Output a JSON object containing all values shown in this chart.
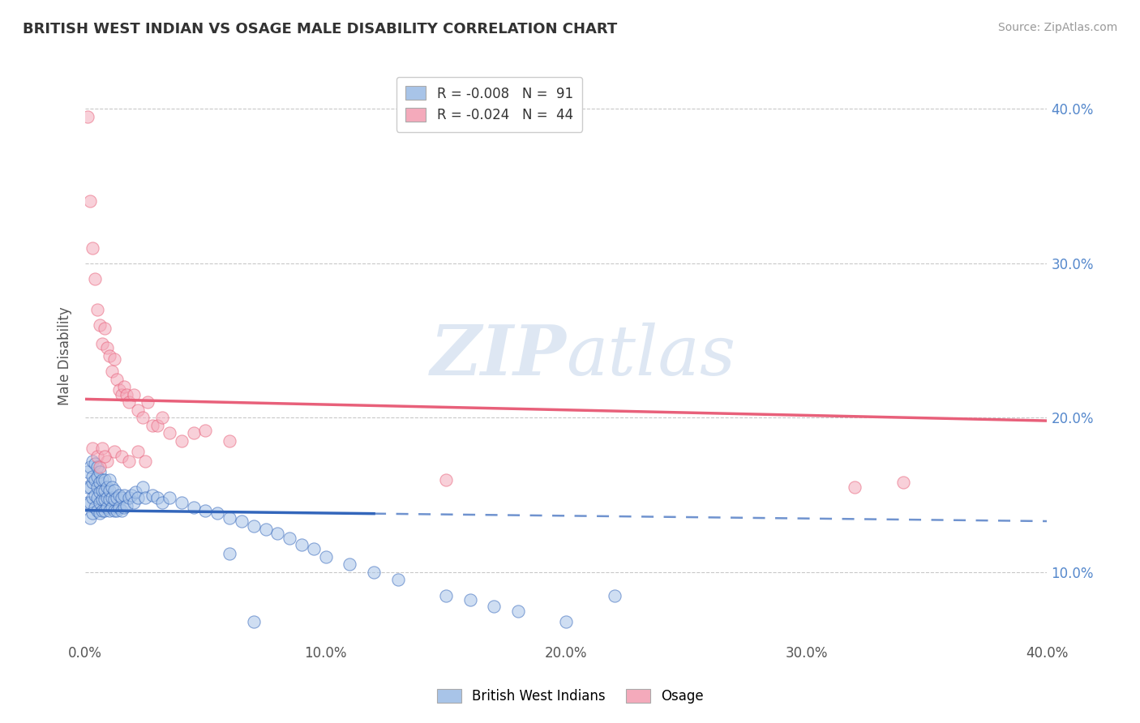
{
  "title": "BRITISH WEST INDIAN VS OSAGE MALE DISABILITY CORRELATION CHART",
  "source": "Source: ZipAtlas.com",
  "ylabel": "Male Disability",
  "xlim": [
    0.0,
    0.4
  ],
  "ylim": [
    0.055,
    0.425
  ],
  "xticks": [
    0.0,
    0.1,
    0.2,
    0.3,
    0.4
  ],
  "yticks": [
    0.1,
    0.2,
    0.3,
    0.4
  ],
  "xticklabels": [
    "0.0%",
    "10.0%",
    "20.0%",
    "30.0%",
    "40.0%"
  ],
  "yticklabels_right": [
    "10.0%",
    "20.0%",
    "30.0%",
    "40.0%"
  ],
  "blue_color": "#A8C4E8",
  "pink_color": "#F4AABB",
  "blue_line_color": "#3366BB",
  "pink_line_color": "#E8607A",
  "watermark_color": "#C8D8EC",
  "series1_label": "British West Indians",
  "series2_label": "Osage",
  "bwi_x": [
    0.001,
    0.001,
    0.001,
    0.002,
    0.002,
    0.002,
    0.002,
    0.003,
    0.003,
    0.003,
    0.003,
    0.003,
    0.004,
    0.004,
    0.004,
    0.004,
    0.005,
    0.005,
    0.005,
    0.005,
    0.005,
    0.006,
    0.006,
    0.006,
    0.006,
    0.006,
    0.007,
    0.007,
    0.007,
    0.007,
    0.008,
    0.008,
    0.008,
    0.008,
    0.009,
    0.009,
    0.009,
    0.01,
    0.01,
    0.01,
    0.01,
    0.011,
    0.011,
    0.011,
    0.012,
    0.012,
    0.012,
    0.013,
    0.013,
    0.014,
    0.014,
    0.015,
    0.015,
    0.016,
    0.016,
    0.017,
    0.018,
    0.019,
    0.02,
    0.021,
    0.022,
    0.024,
    0.025,
    0.028,
    0.03,
    0.032,
    0.035,
    0.04,
    0.045,
    0.05,
    0.055,
    0.06,
    0.065,
    0.07,
    0.075,
    0.08,
    0.085,
    0.09,
    0.095,
    0.1,
    0.11,
    0.12,
    0.13,
    0.15,
    0.16,
    0.17,
    0.18,
    0.2,
    0.22,
    0.06,
    0.07
  ],
  "bwi_y": [
    0.145,
    0.155,
    0.165,
    0.135,
    0.145,
    0.155,
    0.168,
    0.138,
    0.148,
    0.158,
    0.162,
    0.172,
    0.142,
    0.15,
    0.16,
    0.17,
    0.14,
    0.148,
    0.155,
    0.162,
    0.168,
    0.138,
    0.145,
    0.152,
    0.158,
    0.165,
    0.14,
    0.147,
    0.153,
    0.16,
    0.14,
    0.147,
    0.153,
    0.16,
    0.142,
    0.148,
    0.155,
    0.14,
    0.147,
    0.153,
    0.16,
    0.142,
    0.148,
    0.155,
    0.14,
    0.147,
    0.153,
    0.14,
    0.148,
    0.142,
    0.15,
    0.14,
    0.148,
    0.142,
    0.15,
    0.143,
    0.148,
    0.15,
    0.145,
    0.152,
    0.148,
    0.155,
    0.148,
    0.15,
    0.148,
    0.145,
    0.148,
    0.145,
    0.142,
    0.14,
    0.138,
    0.135,
    0.133,
    0.13,
    0.128,
    0.125,
    0.122,
    0.118,
    0.115,
    0.11,
    0.105,
    0.1,
    0.095,
    0.085,
    0.082,
    0.078,
    0.075,
    0.068,
    0.085,
    0.112,
    0.068
  ],
  "osage_x": [
    0.001,
    0.002,
    0.003,
    0.004,
    0.005,
    0.006,
    0.007,
    0.008,
    0.009,
    0.01,
    0.011,
    0.012,
    0.013,
    0.014,
    0.015,
    0.016,
    0.017,
    0.018,
    0.02,
    0.022,
    0.024,
    0.026,
    0.028,
    0.03,
    0.032,
    0.035,
    0.04,
    0.045,
    0.05,
    0.06,
    0.003,
    0.005,
    0.007,
    0.009,
    0.012,
    0.015,
    0.018,
    0.022,
    0.025,
    0.32,
    0.34,
    0.006,
    0.008,
    0.15
  ],
  "osage_y": [
    0.395,
    0.34,
    0.31,
    0.29,
    0.27,
    0.26,
    0.248,
    0.258,
    0.245,
    0.24,
    0.23,
    0.238,
    0.225,
    0.218,
    0.215,
    0.22,
    0.215,
    0.21,
    0.215,
    0.205,
    0.2,
    0.21,
    0.195,
    0.195,
    0.2,
    0.19,
    0.185,
    0.19,
    0.192,
    0.185,
    0.18,
    0.175,
    0.18,
    0.172,
    0.178,
    0.175,
    0.172,
    0.178,
    0.172,
    0.155,
    0.158,
    0.168,
    0.175,
    0.16
  ],
  "bwi_trend_x": [
    0.0,
    0.4
  ],
  "bwi_trend_y": [
    0.14,
    0.133
  ],
  "osage_trend_x": [
    0.0,
    0.4
  ],
  "osage_trend_y": [
    0.212,
    0.198
  ]
}
